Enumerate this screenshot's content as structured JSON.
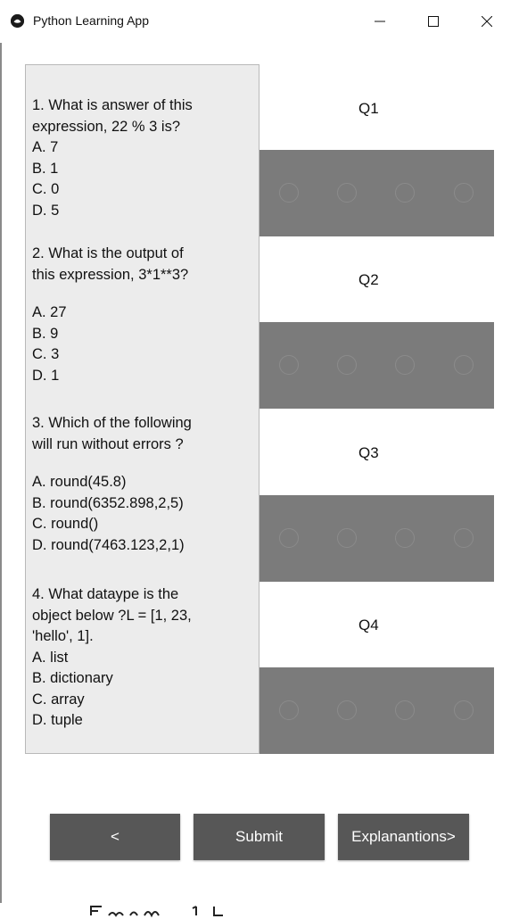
{
  "window": {
    "title": "Python Learning App",
    "controls": [
      "minimize",
      "maximize",
      "close"
    ]
  },
  "questions": [
    {
      "lines": [
        "1. What is answer of this",
        "expression, 22 % 3 is?",
        "A. 7",
        "B. 1",
        "C. 0",
        "D. 5"
      ],
      "label": "Q1"
    },
    {
      "lines": [
        "2. What is the output of",
        "this expression, 3*1**3?",
        "",
        "A. 27",
        "B. 9",
        "C. 3",
        "D. 1"
      ],
      "label": "Q2"
    },
    {
      "lines": [
        "3. Which of the following",
        "will run without errors ?",
        "",
        "A. round(45.8)",
        "B. round(6352.898,2,5)",
        "C. round()",
        "D. round(7463.123,2,1)"
      ],
      "label": "Q3"
    },
    {
      "lines": [
        "4. What dataype is the",
        "object below ?L = [1, 23,",
        "'hello', 1].",
        "A. list",
        "B. dictionary",
        "C. array",
        "D. tuple"
      ],
      "label": "Q4"
    }
  ],
  "radio_options_per_question": 4,
  "buttons": {
    "prev_label": "<",
    "submit_label": "Submit",
    "explanations_label": "Explanantions>"
  },
  "colors": {
    "panel_bg": "#ececec",
    "option_row_bg": "#7b7b7b",
    "button_bg": "#575757",
    "button_text": "#ffffff"
  }
}
